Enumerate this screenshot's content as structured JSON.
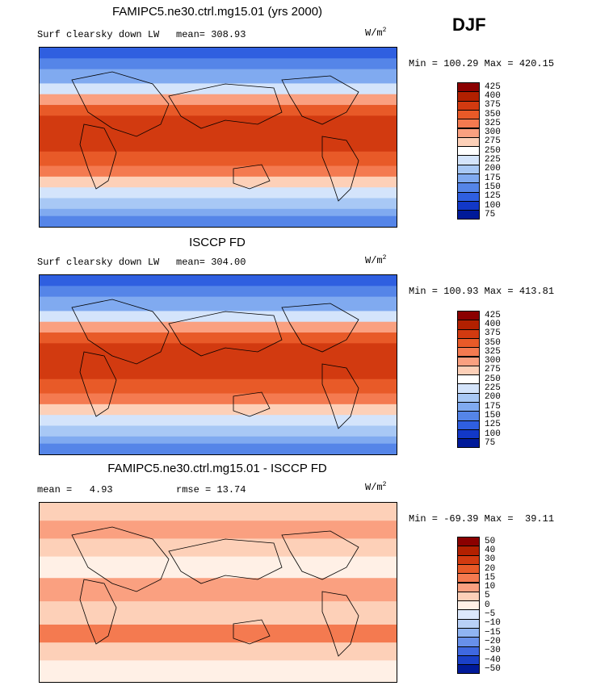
{
  "season": "DJF",
  "units_label": "W/m",
  "units_sup": "2",
  "panels": [
    {
      "title": "FAMIPC5.ne30.ctrl.mg15.01 (yrs 2000)",
      "left_label": "Surf clearsky down LW",
      "stat_label": "mean=",
      "stat_value": "308.93",
      "minmax": "Min = 100.29 Max = 420.15",
      "type": "absolute"
    },
    {
      "title": "ISCCP FD",
      "left_label": "Surf clearsky down LW",
      "stat_label": "mean=",
      "stat_value": "304.00",
      "minmax": "Min = 100.93 Max = 413.81",
      "type": "absolute"
    },
    {
      "title": "FAMIPC5.ne30.ctrl.mg15.01 - ISCCP FD",
      "left_label": "mean =   4.93",
      "stat_label": "rmse =",
      "stat_value": "13.74",
      "minmax": "Min = -69.39 Max =  39.11",
      "type": "difference"
    }
  ],
  "chart_data": [
    {
      "type": "heatmap",
      "title": "FAMIPC5.ne30.ctrl.mg15.01 (yrs 2000)",
      "variable": "Surf clearsky down LW",
      "units": "W/m2",
      "mean": 308.93,
      "min": 100.29,
      "max": 420.15,
      "colorbar_levels": [
        425,
        400,
        375,
        350,
        325,
        300,
        275,
        250,
        225,
        200,
        175,
        150,
        125,
        100,
        75
      ],
      "colorbar_colors": [
        "#8b0000",
        "#b22000",
        "#d23a10",
        "#e85a28",
        "#f47a50",
        "#faa080",
        "#fdd0b8",
        "#ffffff",
        "#d4e4fb",
        "#a8c8f5",
        "#80aaf0",
        "#5585e8",
        "#2f5fe0",
        "#1238c8",
        "#001a99"
      ]
    },
    {
      "type": "heatmap",
      "title": "ISCCP FD",
      "variable": "Surf clearsky down LW",
      "units": "W/m2",
      "mean": 304.0,
      "min": 100.93,
      "max": 413.81,
      "colorbar_levels": [
        425,
        400,
        375,
        350,
        325,
        300,
        275,
        250,
        225,
        200,
        175,
        150,
        125,
        100,
        75
      ],
      "colorbar_colors": [
        "#8b0000",
        "#b22000",
        "#d23a10",
        "#e85a28",
        "#f47a50",
        "#faa080",
        "#fdd0b8",
        "#ffffff",
        "#d4e4fb",
        "#a8c8f5",
        "#80aaf0",
        "#5585e8",
        "#2f5fe0",
        "#1238c8",
        "#001a99"
      ]
    },
    {
      "type": "heatmap",
      "title": "FAMIPC5.ne30.ctrl.mg15.01 - ISCCP FD",
      "units": "W/m2",
      "mean": 4.93,
      "rmse": 13.74,
      "min": -69.39,
      "max": 39.11,
      "colorbar_levels": [
        "50",
        "40",
        "30",
        "20",
        "15",
        "10",
        "5",
        "0",
        "-5",
        "-10",
        "-15",
        "-20",
        "-30",
        "-40",
        "-50"
      ],
      "colorbar_colors": [
        "#8b0000",
        "#b22000",
        "#d23a10",
        "#e85a28",
        "#f47a50",
        "#faa080",
        "#fdd0b8",
        "#fff0e6",
        "#dce8fb",
        "#b8d0f7",
        "#90b4f2",
        "#6890ea",
        "#3f68e0",
        "#1a40c8",
        "#001a99"
      ]
    }
  ]
}
